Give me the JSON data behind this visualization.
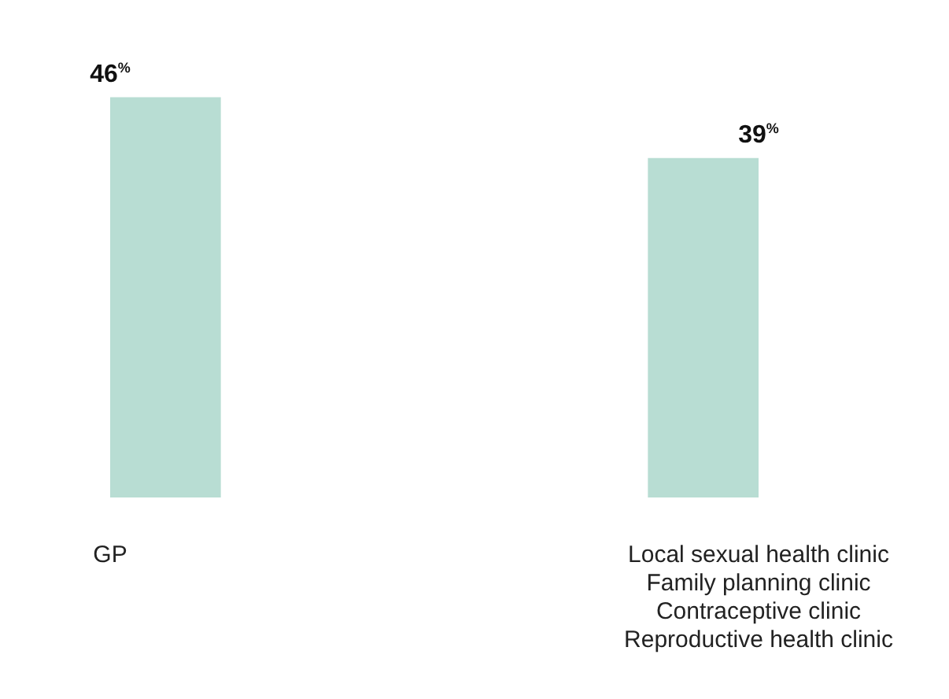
{
  "chart_data": {
    "type": "bar",
    "categories": [
      "GP",
      "Local sexual health clinic\nFamily planning clinic\nContraceptive clinic\nReproductive health clinic"
    ],
    "values": [
      46,
      39
    ],
    "color": "#b8ddd3",
    "value_labels": [
      "46$^{%}$",
      "39$^{%}$"
    ],
    "grid": false,
    "legend": false
  }
}
